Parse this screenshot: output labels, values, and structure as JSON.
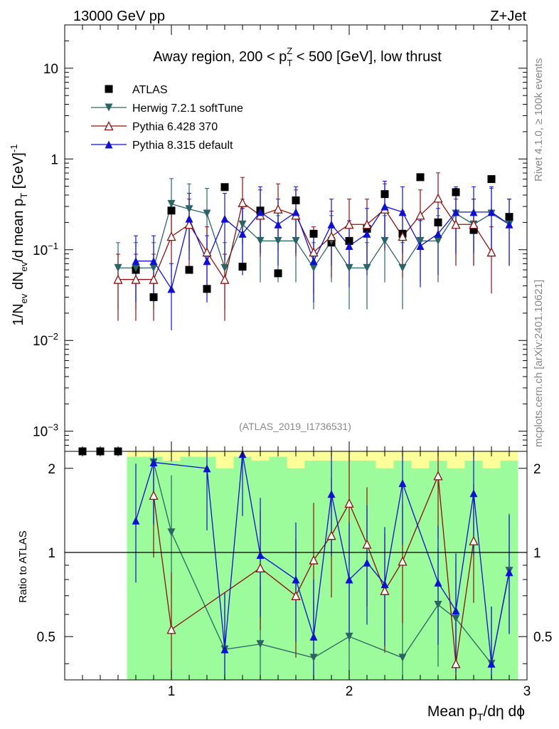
{
  "header": {
    "left": "13000 GeV pp",
    "right": "Z+Jet"
  },
  "side": {
    "rivet": "Rivet 4.1.0, ≥ 100k events",
    "mcplots": "mcplots.cern.ch [arXiv:2401.10621]"
  },
  "watermark": "(ATLAS_2019_I1736531)",
  "chart_data": {
    "type": "scatter",
    "title": "Away region, 200 < p_T^Z < 500 [GeV], low thrust",
    "xlabel": "Mean p_T/dη dϕ",
    "ylabel": "1/N_ev dN_ev/d mean p_T [GeV]^-1",
    "ratio_ylabel": "Ratio to ATLAS",
    "xlim": [
      0.4,
      3.0
    ],
    "ylim": [
      0.0006,
      30
    ],
    "ratio_ylim": [
      0.35,
      2.3
    ],
    "x_ticks": [
      1,
      2,
      3
    ],
    "y_ticks": [
      {
        "value": 0.001,
        "base": "10",
        "exp": "−3"
      },
      {
        "value": 0.01,
        "base": "10",
        "exp": "−2"
      },
      {
        "value": 0.1,
        "base": "10",
        "exp": "−1"
      },
      {
        "value": 1,
        "label": "1"
      },
      {
        "value": 10,
        "label": "10"
      }
    ],
    "ratio_ticks": [
      0.5,
      1,
      2
    ],
    "x": [
      0.5,
      0.6,
      0.7,
      0.8,
      0.9,
      1.0,
      1.1,
      1.2,
      1.3,
      1.4,
      1.5,
      1.6,
      1.7,
      1.8,
      1.9,
      2.0,
      2.1,
      2.2,
      2.3,
      2.4,
      2.5,
      2.6,
      2.7,
      2.8,
      2.9
    ],
    "series": [
      {
        "name": "ATLAS",
        "color": "#000000",
        "marker": "square",
        "values": [
          0.0006,
          0.0006,
          0.0006,
          0.06,
          0.03,
          0.27,
          0.06,
          0.037,
          0.49,
          0.065,
          0.27,
          0.055,
          0.35,
          0.15,
          0.12,
          0.125,
          0.17,
          0.41,
          0.15,
          0.63,
          0.2,
          0.43,
          0.165,
          0.6,
          0.23
        ]
      },
      {
        "name": "Herwig 7.2.1 softTune",
        "color": "#2a6464",
        "marker": "triangle-down",
        "values": [
          null,
          null,
          0.063,
          0.063,
          0.063,
          0.32,
          0.28,
          0.25,
          0.063,
          0.19,
          0.125,
          0.125,
          0.125,
          0.063,
          0.125,
          0.063,
          0.063,
          0.125,
          0.063,
          0.125,
          0.125,
          0.25,
          0.19,
          0.25,
          0.19
        ],
        "ratio": [
          null,
          null,
          null,
          null,
          2.1,
          1.18,
          null,
          null,
          0.45,
          null,
          0.47,
          null,
          null,
          0.42,
          null,
          0.5,
          null,
          null,
          0.42,
          null,
          0.65,
          0.58,
          null,
          0.4,
          0.86
        ]
      },
      {
        "name": "Pythia 6.428 370",
        "color": "#8b1010",
        "marker": "triangle-up-open",
        "values": [
          null,
          null,
          0.047,
          0.047,
          0.047,
          0.14,
          0.19,
          0.094,
          0.047,
          0.33,
          0.24,
          0.28,
          0.24,
          0.094,
          0.14,
          0.19,
          0.19,
          0.28,
          0.14,
          0.24,
          0.37,
          0.19,
          0.19,
          0.094,
          null
        ],
        "ratio": [
          null,
          null,
          null,
          null,
          1.6,
          0.53,
          null,
          null,
          null,
          null,
          0.88,
          null,
          0.7,
          0.94,
          1.15,
          1.5,
          1.07,
          0.73,
          0.93,
          null,
          1.88,
          0.4,
          1.1,
          null,
          null
        ]
      },
      {
        "name": "Pythia 8.315 default",
        "color": "#1010d0",
        "marker": "triangle-up",
        "values": [
          null,
          null,
          null,
          0.075,
          0.075,
          0.037,
          0.22,
          0.075,
          0.22,
          0.15,
          0.26,
          0.19,
          0.26,
          0.075,
          0.19,
          0.11,
          0.15,
          0.3,
          0.26,
          0.11,
          0.15,
          0.26,
          0.26,
          0.26,
          0.19
        ],
        "ratio": [
          null,
          null,
          null,
          1.3,
          2.1,
          null,
          null,
          2.0,
          0.45,
          2.25,
          0.98,
          null,
          0.8,
          0.5,
          1.62,
          0.8,
          0.92,
          0.77,
          1.77,
          null,
          0.78,
          0.62,
          1.63,
          0.4,
          0.85
        ]
      }
    ]
  }
}
